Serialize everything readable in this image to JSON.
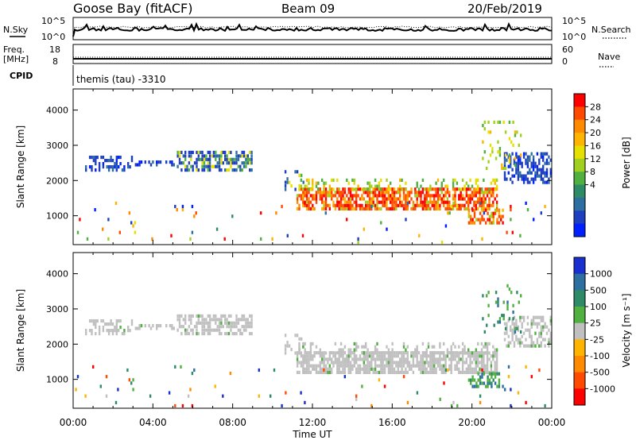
{
  "header": {
    "station": "Goose Bay (fitACF)",
    "beam": "Beam 09",
    "date": "20/Feb/2019"
  },
  "noise_panel": {
    "left_label": "N.Sky",
    "right_label": "N.Search",
    "left_ticks": [
      "10^5",
      "10^0"
    ],
    "right_ticks": [
      "10^5",
      "10^0"
    ]
  },
  "freq_panel": {
    "left_label_1": "Freq.",
    "left_label_2": "[MHz]",
    "left_ticks": [
      "18",
      "8"
    ],
    "right_label": "Nave",
    "right_ticks": [
      "60",
      "0"
    ]
  },
  "cpid": {
    "label": "CPID",
    "value": "themis (tau) -3310"
  },
  "chart_data": [
    {
      "type": "heatmap",
      "name": "power",
      "ylabel": "Slant Range [km]",
      "ylim": [
        180,
        4600
      ],
      "y_ticks": [
        1000,
        2000,
        3000,
        4000
      ],
      "colorbar": {
        "label": "Power [dB]",
        "ticks": [
          "28",
          "24",
          "20",
          "16",
          "12",
          "8",
          "4"
        ],
        "colors": [
          "#ff0000",
          "#ff4a00",
          "#ff8a00",
          "#ffb400",
          "#e6e000",
          "#a0d020",
          "#50b040",
          "#2e8b68",
          "#2d6fa0",
          "#1e3fc0",
          "#0020ff"
        ]
      },
      "bands": [
        {
          "x0": 0.6,
          "x1": 3.0,
          "y0": 2250,
          "y1": 2700,
          "level": "low",
          "density": 0.45
        },
        {
          "x0": 3.0,
          "x1": 5.2,
          "y0": 2400,
          "y1": 2550,
          "level": "low",
          "density": 0.3
        },
        {
          "x0": 5.2,
          "x1": 9.0,
          "y0": 2250,
          "y1": 2850,
          "level": "lowmid",
          "density": 0.55
        },
        {
          "x0": 10.5,
          "x1": 11.6,
          "y0": 1700,
          "y1": 2300,
          "level": "lowmid",
          "density": 0.25
        },
        {
          "x0": 11.2,
          "x1": 21.3,
          "y0": 1150,
          "y1": 1800,
          "level": "high",
          "density": 0.7
        },
        {
          "x0": 11.2,
          "x1": 21.3,
          "y0": 1700,
          "y1": 2050,
          "level": "mid",
          "density": 0.3
        },
        {
          "x0": 19.8,
          "x1": 21.6,
          "y0": 750,
          "y1": 1200,
          "level": "high",
          "density": 0.5
        },
        {
          "x0": 21.6,
          "x1": 24.0,
          "y0": 1900,
          "y1": 2800,
          "level": "low",
          "density": 0.55
        },
        {
          "x0": 20.5,
          "x1": 22.5,
          "y0": 2300,
          "y1": 3700,
          "level": "mid",
          "density": 0.12
        },
        {
          "x0": 0.0,
          "x1": 24.0,
          "y0": 200,
          "y1": 1400,
          "level": "mixed",
          "density": 0.02
        }
      ]
    },
    {
      "type": "heatmap",
      "name": "velocity",
      "ylabel": "Slant Range [km]",
      "xlabel": "Time UT",
      "ylim": [
        180,
        4600
      ],
      "y_ticks": [
        1000,
        2000,
        3000,
        4000
      ],
      "x_ticks": [
        "00:00",
        "04:00",
        "08:00",
        "12:00",
        "16:00",
        "20:00",
        "00:00"
      ],
      "xlim": [
        0,
        24
      ],
      "colorbar": {
        "label": "Velocity [m s⁻¹]",
        "ticks": [
          "1000",
          "500",
          "100",
          "25",
          "-25",
          "-100",
          "-500",
          "-1000"
        ],
        "colors": [
          "#1a2fd0",
          "#2d6fa0",
          "#2e8b68",
          "#50b040",
          "#c0c0c0",
          "#ffb400",
          "#ff8a00",
          "#ff4a00",
          "#ff0000"
        ]
      },
      "bands": [
        {
          "x0": 0.6,
          "x1": 3.0,
          "y0": 2250,
          "y1": 2700,
          "level": "grey",
          "density": 0.45
        },
        {
          "x0": 3.0,
          "x1": 5.2,
          "y0": 2400,
          "y1": 2550,
          "level": "grey",
          "density": 0.3
        },
        {
          "x0": 5.2,
          "x1": 9.0,
          "y0": 2250,
          "y1": 2850,
          "level": "grey",
          "density": 0.55
        },
        {
          "x0": 10.5,
          "x1": 11.6,
          "y0": 1700,
          "y1": 2300,
          "level": "grey",
          "density": 0.25
        },
        {
          "x0": 11.2,
          "x1": 21.3,
          "y0": 1150,
          "y1": 1800,
          "level": "grey",
          "density": 0.75
        },
        {
          "x0": 11.2,
          "x1": 21.3,
          "y0": 1700,
          "y1": 2050,
          "level": "grey",
          "density": 0.3
        },
        {
          "x0": 19.8,
          "x1": 21.6,
          "y0": 750,
          "y1": 1200,
          "level": "pos",
          "density": 0.45
        },
        {
          "x0": 21.6,
          "x1": 24.0,
          "y0": 1900,
          "y1": 2800,
          "level": "grey",
          "density": 0.5
        },
        {
          "x0": 20.5,
          "x1": 22.5,
          "y0": 2300,
          "y1": 3700,
          "level": "pos",
          "density": 0.1
        },
        {
          "x0": 0.0,
          "x1": 24.0,
          "y0": 200,
          "y1": 1400,
          "level": "vmixed",
          "density": 0.02
        }
      ]
    }
  ]
}
